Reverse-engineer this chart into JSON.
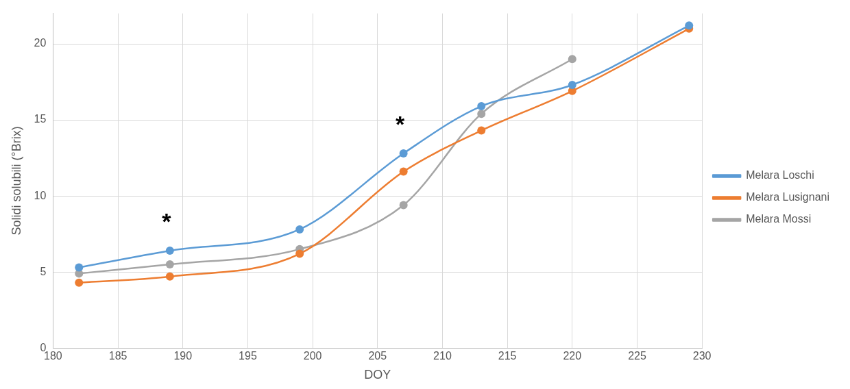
{
  "chart_data": {
    "type": "line",
    "xlabel": "DOY",
    "ylabel": "Solidi solubili (°Brix)",
    "xlim": [
      180,
      230
    ],
    "xticks": [
      180,
      185,
      190,
      195,
      200,
      205,
      210,
      215,
      220,
      225,
      230
    ],
    "ylim": [
      0,
      22
    ],
    "yticks": [
      0,
      5,
      10,
      15,
      20
    ],
    "grid": true,
    "legend": "right",
    "marker": "circle",
    "line_style": "solid",
    "series": [
      {
        "name": "Melara Loschi",
        "color": "#5b9bd5",
        "x": [
          182,
          189,
          199,
          207,
          213,
          220,
          229
        ],
        "values": [
          5.3,
          6.4,
          7.8,
          12.8,
          15.9,
          17.3,
          21.2
        ]
      },
      {
        "name": "Melara Lusignani",
        "color": "#ed7d31",
        "x": [
          182,
          189,
          199,
          207,
          213,
          220,
          229
        ],
        "values": [
          4.3,
          4.7,
          6.2,
          11.6,
          14.3,
          16.9,
          21.0
        ]
      },
      {
        "name": "Melara Mossi",
        "color": "#a5a5a5",
        "x": [
          182,
          189,
          199,
          207,
          213,
          220
        ],
        "values": [
          4.9,
          5.5,
          6.5,
          9.4,
          15.4,
          19.0
        ]
      }
    ],
    "annotations": [
      {
        "text": "*",
        "x": 189,
        "y": 6.4
      },
      {
        "text": "*",
        "x": 207,
        "y": 12.8
      }
    ]
  }
}
